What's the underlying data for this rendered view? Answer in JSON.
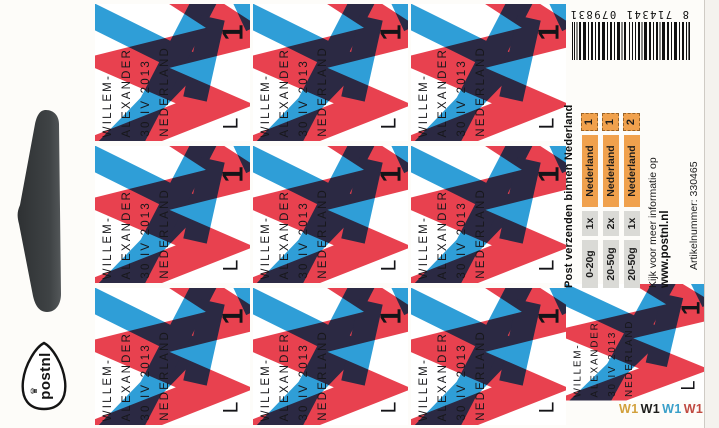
{
  "sheet": {
    "stamps": {
      "count": 10,
      "lines": [
        "WILLEM-",
        "ALEXANDER",
        "30 IV 2013",
        "NEDERLAND"
      ],
      "denomination": "1",
      "phosphor_mark": "L"
    },
    "barcode": {
      "number_groups": [
        "8",
        "714341",
        "079831"
      ]
    },
    "info_panel": {
      "heading": "Post verzenden binnen Nederland",
      "rows": [
        {
          "weight": "0-20g",
          "count": "1x",
          "region": "Nederland",
          "denom": "1"
        },
        {
          "weight": "20-50g",
          "count": "2x",
          "region": "Nederland",
          "denom": "1"
        },
        {
          "weight": "20-50g",
          "count": "1x",
          "region": "Nederland",
          "denom": "2"
        }
      ],
      "footer_line1": "Kijk voor meer informatie op",
      "footer_line2": "www.postnl.nl",
      "article_number": "Artikelnummer: 330465"
    },
    "logo": {
      "text": "postnl",
      "crown_icon": "♛"
    },
    "registration_marks": [
      {
        "text": "W1",
        "color": "#d2a03c"
      },
      {
        "text": "W1",
        "color": "#1d1d1b"
      },
      {
        "text": "W1",
        "color": "#3aa0c9"
      },
      {
        "text": "W1",
        "color": "#c04a40"
      }
    ],
    "colors": {
      "stamp_red": "#e8414f",
      "stamp_blue": "#2f9ed7",
      "badge_orange": "#f0a14d",
      "badge_gray": "#dadad6"
    }
  }
}
